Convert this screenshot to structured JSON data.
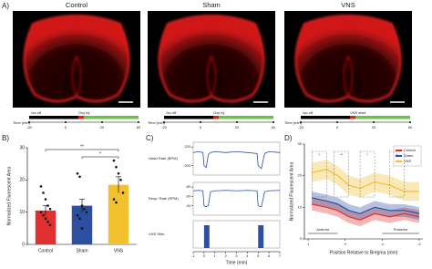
{
  "panel_labels": [
    "A)",
    "B)",
    "C)",
    "D)"
  ],
  "images": {
    "titles": [
      "Control",
      "Sham",
      "VNS"
    ]
  },
  "timelines": [
    {
      "events": [
        "Iso off",
        "Oxy inj."
      ]
    },
    {
      "events": [
        "Iso off",
        "Oxy inj."
      ]
    },
    {
      "events": [
        "Iso off",
        "VNS start"
      ]
    }
  ],
  "timeline_axis": {
    "label": "Time (min)",
    "ticks": [
      -20,
      0,
      20,
      60
    ]
  },
  "chart_data": [
    {
      "type": "bar",
      "ylabel": "Normalized Fluorescent Area",
      "categories": [
        "Control",
        "Sham",
        "VNS"
      ],
      "values": [
        10.5,
        12,
        18.5
      ],
      "errors": [
        1.5,
        2,
        2.5
      ],
      "colors": [
        "#e03030",
        "#2d4fa0",
        "#f2c12e"
      ],
      "points": [
        [
          18,
          16,
          14,
          12,
          11,
          10,
          9,
          8,
          7,
          6
        ],
        [
          22,
          21,
          12,
          11,
          10,
          9,
          8,
          5
        ],
        [
          26,
          24,
          22,
          20,
          16,
          14,
          13
        ]
      ],
      "ylim": [
        0,
        30
      ],
      "yticks": [
        0,
        10,
        20,
        30
      ],
      "annotations": [
        "**",
        "*"
      ]
    },
    {
      "type": "traces",
      "xlabel": "Time (min)",
      "xlim": [
        -1,
        7
      ],
      "xticks": [
        -1,
        0,
        1,
        2,
        3,
        4,
        5,
        6,
        7
      ],
      "series": [
        {
          "name": "Heart Rate (BPM)",
          "color": "#2d4fa0",
          "ylim": [
            190,
            225
          ],
          "yticks": [
            200,
            220
          ],
          "x": [
            -1,
            -0.5,
            -0.1,
            0,
            0.2,
            0.4,
            0.6,
            1,
            2,
            3,
            4,
            4.9,
            5,
            5.3,
            5.6,
            6,
            7
          ],
          "values": [
            214,
            215,
            214,
            200,
            198,
            212,
            214,
            215,
            214,
            215,
            214,
            213,
            200,
            197,
            213,
            215,
            214
          ]
        },
        {
          "name": "Resp. Rate (RPM)",
          "color": "#2d4fa0",
          "ylim": [
            20,
            90
          ],
          "yticks": [
            40,
            60,
            80
          ],
          "x": [
            -1,
            -0.5,
            -0.1,
            0,
            0.2,
            0.4,
            0.6,
            1,
            2,
            3,
            4,
            4.9,
            5,
            5.3,
            5.6,
            6,
            7
          ],
          "values": [
            72,
            73,
            72,
            40,
            38,
            41,
            70,
            72,
            73,
            72,
            73,
            72,
            40,
            38,
            70,
            72,
            73
          ]
        },
        {
          "name": "VNS Stim.",
          "color": "#2d4fa0",
          "x": [
            0,
            5
          ],
          "x_end": [
            0.5,
            5.5
          ],
          "values": [
            1,
            1
          ],
          "ylim": [
            0,
            1.2
          ]
        }
      ]
    },
    {
      "type": "line",
      "xlabel": "Position Relative to Bregma (mm)",
      "ylabel": "Normalized Fluorescent Area",
      "xlim": [
        1.1,
        -2.1
      ],
      "xticks": [
        1,
        0,
        -1,
        -2
      ],
      "ylim": [
        0,
        30
      ],
      "yticks": [
        0,
        10,
        20,
        30
      ],
      "x": [
        0.9,
        0.5,
        0.2,
        -0.1,
        -0.4,
        -0.8,
        -1.2,
        -1.6,
        -2
      ],
      "series": [
        {
          "name": "Control",
          "color": "#e03030",
          "values": [
            11,
            10,
            9,
            7,
            6,
            8,
            7,
            8,
            7
          ],
          "errors": [
            2,
            2,
            2,
            2,
            2,
            2,
            2,
            2,
            2
          ]
        },
        {
          "name": "Sham",
          "color": "#2d4fa0",
          "values": [
            13,
            12,
            11,
            9,
            8,
            10,
            9,
            9,
            8
          ],
          "errors": [
            2,
            2,
            2,
            2,
            2,
            2,
            2,
            2,
            2
          ]
        },
        {
          "name": "VNS",
          "color": "#f2c12e",
          "values": [
            21,
            22,
            20,
            17,
            16,
            18,
            17,
            15,
            15
          ],
          "errors": [
            3,
            3,
            3,
            3,
            3,
            3,
            3,
            3,
            3
          ]
        }
      ],
      "legend": "top-right",
      "annotations": [
        "Anterior",
        "Posterior",
        "*",
        "**",
        "*",
        "*"
      ]
    }
  ]
}
